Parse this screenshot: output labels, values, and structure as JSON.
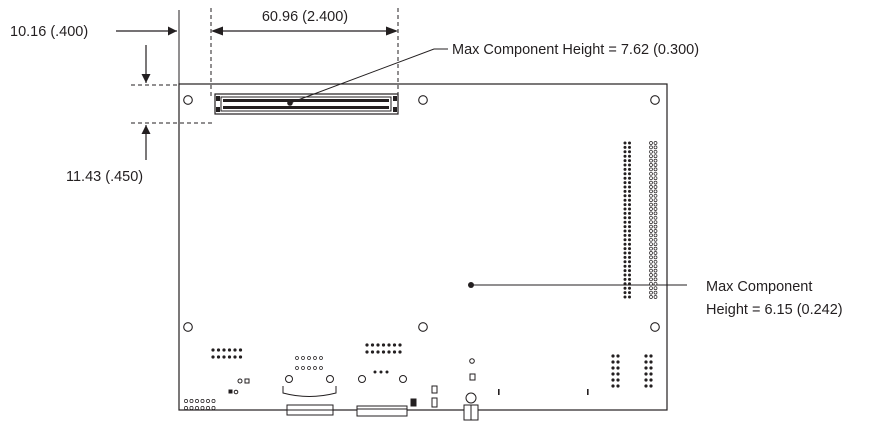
{
  "dimensions": {
    "edge_offset": "10.16 (.400)",
    "connector_offset": "11.43 (.450)",
    "connector_width": "60.96 (2.400)"
  },
  "callouts": {
    "connector_max_height": "Max Component Height = 7.62 (0.300)",
    "board_max_height_line1": "Max Component",
    "board_max_height_line2": "Height = 6.15 (0.242)"
  }
}
